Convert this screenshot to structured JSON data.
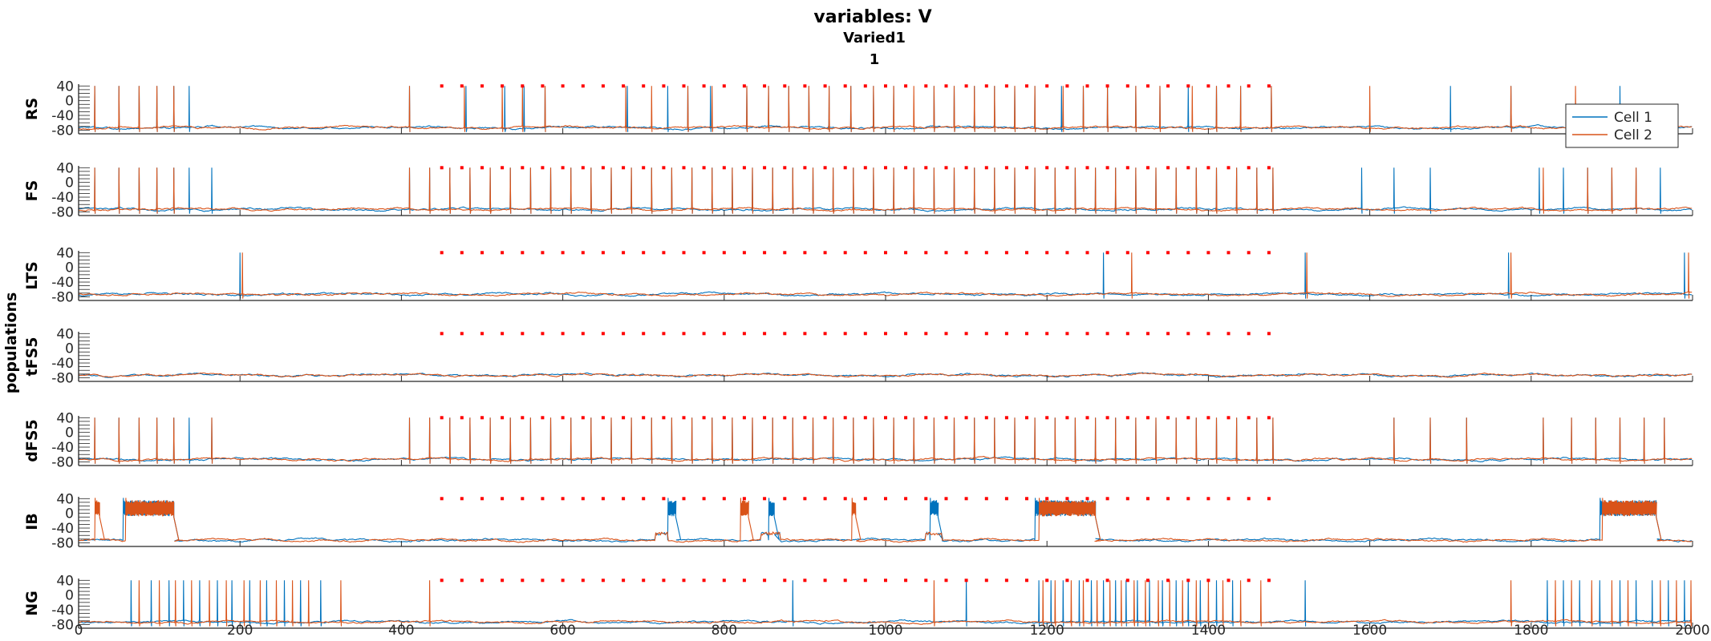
{
  "chart_data": {
    "type": "line",
    "title": "variables: V",
    "subtitle_1": "Varied1",
    "subtitle_2": "1",
    "ylabel": "populations",
    "xlim": [
      0,
      2000
    ],
    "ylim": [
      -90,
      45
    ],
    "x_ticks": [
      0,
      200,
      400,
      600,
      800,
      1000,
      1200,
      1400,
      1600,
      1800,
      2000
    ],
    "x_tick_labels": [
      "0",
      "200",
      "400",
      "600",
      "800",
      "1000",
      "1200",
      "1400",
      "1600",
      "1800",
      "2000"
    ],
    "y_ticks": [
      40,
      0,
      -40,
      -80
    ],
    "y_tick_labels": [
      "40",
      "0",
      "-40",
      "-80"
    ],
    "legend": {
      "placement": "top-right",
      "entries": [
        "Cell 1",
        "Cell 2"
      ]
    },
    "series_colors": {
      "Cell 1": "#0072BD",
      "Cell 2": "#D95319",
      "stimulus_markers": "#FF0000"
    },
    "stimulus_markers": {
      "start": 450,
      "end": 1480,
      "step": 25,
      "level": 40
    },
    "rest_potential": -73,
    "panels": [
      {
        "name": "RS",
        "cell1_spikes": [
          20,
          50,
          75,
          97,
          118,
          137,
          410,
          480,
          528,
          552,
          578,
          680,
          730,
          755,
          783,
          828,
          855,
          880,
          905,
          930,
          957,
          985,
          1010,
          1060,
          1085,
          1110,
          1135,
          1160,
          1185,
          1218,
          1245,
          1275,
          1310,
          1340,
          1375,
          1410,
          1440,
          1478,
          1700,
          1775,
          1910
        ],
        "cell2_spikes": [
          20,
          50,
          75,
          97,
          118,
          410,
          478,
          525,
          550,
          578,
          678,
          710,
          755,
          785,
          828,
          855,
          880,
          905,
          930,
          957,
          985,
          1010,
          1035,
          1060,
          1085,
          1110,
          1135,
          1160,
          1185,
          1220,
          1245,
          1275,
          1310,
          1340,
          1380,
          1410,
          1440,
          1478,
          1600,
          1775,
          1855
        ]
      },
      {
        "name": "FS",
        "cell1_spikes": [
          20,
          50,
          75,
          97,
          118,
          137,
          165,
          410,
          435,
          460,
          485,
          510,
          535,
          560,
          585,
          610,
          635,
          660,
          685,
          710,
          735,
          760,
          785,
          810,
          835,
          860,
          885,
          910,
          935,
          960,
          985,
          1010,
          1035,
          1060,
          1085,
          1110,
          1135,
          1160,
          1185,
          1210,
          1235,
          1260,
          1285,
          1310,
          1335,
          1360,
          1385,
          1410,
          1435,
          1460,
          1480,
          1590,
          1630,
          1675,
          1810,
          1840,
          1870,
          1900,
          1930,
          1960
        ],
        "cell2_spikes": [
          20,
          50,
          75,
          97,
          118,
          410,
          435,
          460,
          485,
          510,
          535,
          560,
          585,
          610,
          635,
          660,
          685,
          710,
          735,
          760,
          785,
          810,
          835,
          860,
          885,
          910,
          935,
          960,
          985,
          1010,
          1035,
          1060,
          1085,
          1110,
          1135,
          1160,
          1185,
          1210,
          1235,
          1260,
          1285,
          1310,
          1335,
          1360,
          1385,
          1410,
          1435,
          1460,
          1480,
          1815,
          1870,
          1900,
          1930
        ]
      },
      {
        "name": "LTS",
        "cell1_spikes": [
          200,
          1270,
          1520,
          1772,
          1990
        ],
        "cell2_spikes": [
          203,
          1305,
          1522,
          1775,
          1995
        ]
      },
      {
        "name": "tFS5",
        "cell1_spikes": [],
        "cell2_spikes": []
      },
      {
        "name": "dFS5",
        "cell1_spikes": [
          20,
          50,
          75,
          97,
          118,
          137,
          165,
          410,
          435,
          460,
          485,
          510,
          535,
          560,
          585,
          610,
          635,
          660,
          685,
          710,
          735,
          760,
          785,
          810,
          835,
          860,
          885,
          910,
          935,
          960,
          985,
          1010,
          1035,
          1060,
          1085,
          1110,
          1135,
          1160,
          1185,
          1210,
          1235,
          1260,
          1285,
          1310,
          1335,
          1360,
          1385,
          1410,
          1435,
          1460,
          1480,
          1630,
          1675,
          1720,
          1815,
          1850,
          1880,
          1910,
          1940,
          1965
        ],
        "cell2_spikes": [
          20,
          50,
          75,
          97,
          118,
          165,
          410,
          435,
          460,
          485,
          510,
          535,
          560,
          585,
          610,
          635,
          660,
          685,
          710,
          735,
          760,
          785,
          810,
          835,
          860,
          885,
          910,
          935,
          960,
          985,
          1010,
          1035,
          1060,
          1085,
          1110,
          1135,
          1160,
          1185,
          1210,
          1235,
          1260,
          1285,
          1310,
          1335,
          1360,
          1385,
          1410,
          1435,
          1460,
          1480,
          1630,
          1675,
          1720,
          1815,
          1850,
          1880,
          1910,
          1940,
          1965
        ]
      },
      {
        "name": "IB",
        "cell1_bursts": [
          [
            55,
            118
          ],
          [
            730,
            740
          ],
          [
            855,
            862
          ],
          [
            1055,
            1065
          ],
          [
            1185,
            1260
          ],
          [
            1885,
            1955
          ]
        ],
        "cell2_bursts": [
          [
            20,
            26
          ],
          [
            58,
            118
          ],
          [
            820,
            830
          ],
          [
            958,
            963
          ],
          [
            1190,
            1260
          ],
          [
            1888,
            1955
          ]
        ]
      },
      {
        "name": "NG",
        "cell1_spikes": [
          65,
          90,
          112,
          130,
          150,
          172,
          190,
          212,
          233,
          255,
          275,
          300,
          885,
          1100,
          1190,
          1205,
          1220,
          1240,
          1255,
          1270,
          1285,
          1298,
          1312,
          1327,
          1343,
          1360,
          1375,
          1390,
          1410,
          1430,
          1520,
          1820,
          1840,
          1860,
          1885,
          1910,
          1930,
          1950,
          1970,
          1990
        ],
        "cell2_spikes": [
          75,
          100,
          120,
          140,
          162,
          183,
          205,
          225,
          245,
          265,
          285,
          325,
          435,
          1060,
          1195,
          1210,
          1230,
          1245,
          1262,
          1278,
          1292,
          1308,
          1322,
          1338,
          1352,
          1368,
          1385,
          1400,
          1418,
          1440,
          1465,
          1775,
          1830,
          1850,
          1875,
          1900,
          1920,
          1960,
          1980,
          1998
        ]
      }
    ]
  }
}
